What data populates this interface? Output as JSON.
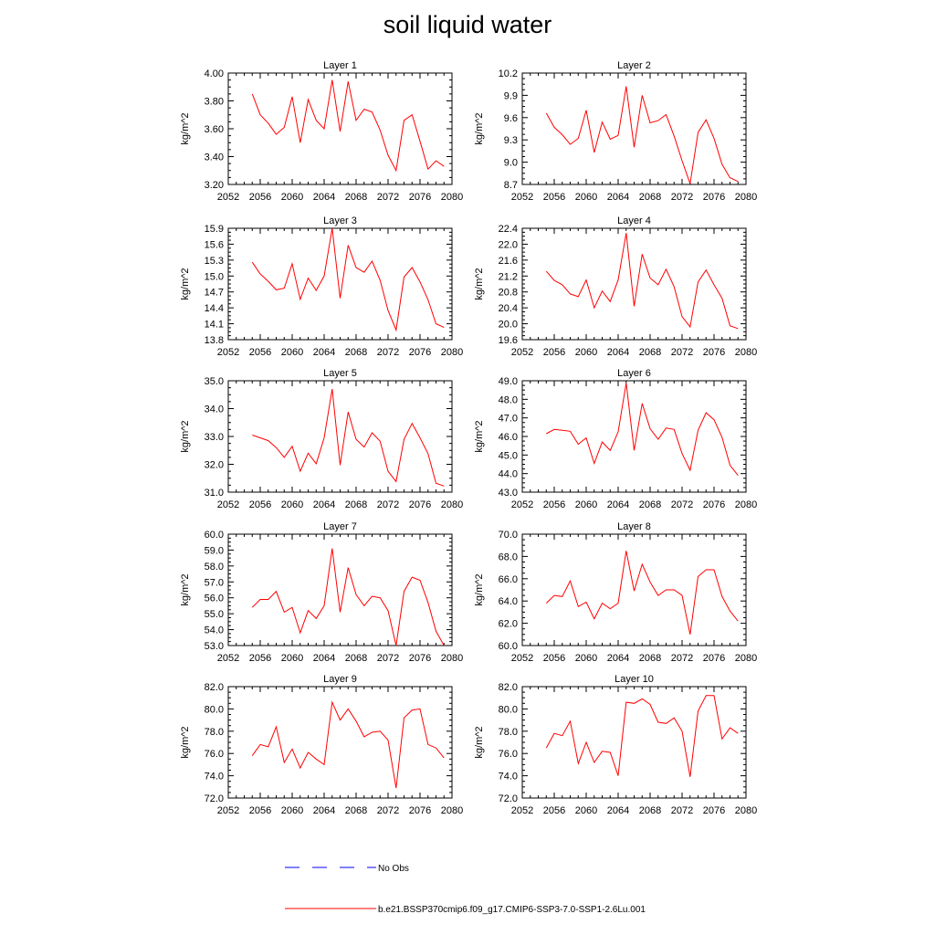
{
  "title": "soil liquid water",
  "x": [
    2055,
    2056,
    2057,
    2058,
    2059,
    2060,
    2061,
    2062,
    2063,
    2064,
    2065,
    2066,
    2067,
    2068,
    2069,
    2070,
    2071,
    2072,
    2073,
    2074,
    2075,
    2076,
    2077,
    2078,
    2079
  ],
  "xlim": [
    2052,
    2080
  ],
  "xticks": [
    2052,
    2056,
    2060,
    2064,
    2068,
    2072,
    2076,
    2080
  ],
  "legend": {
    "obs_label": "No Obs",
    "model_label": "b.e21.BSSP370cmip6.f09_g17.CMIP6-SSP3-7.0-SSP1-2.6Lu.001"
  },
  "colors": {
    "model": "#ff0000",
    "obs": "#0000ff"
  },
  "chart_data": [
    {
      "type": "line",
      "title": "Layer 1",
      "ylabel": "kg/m^2",
      "ylim": [
        3.2,
        4.0
      ],
      "yticks": [
        "3.20",
        "3.40",
        "3.60",
        "3.80",
        "4.00"
      ],
      "grid": false,
      "values": [
        3.85,
        3.7,
        3.64,
        3.56,
        3.61,
        3.83,
        3.5,
        3.81,
        3.66,
        3.6,
        3.95,
        3.58,
        3.94,
        3.66,
        3.74,
        3.72,
        3.59,
        3.41,
        3.3,
        3.66,
        3.7,
        3.51,
        3.31,
        3.37,
        3.33
      ]
    },
    {
      "type": "line",
      "title": "Layer 2",
      "ylabel": "kg/m^2",
      "ylim": [
        8.7,
        10.2
      ],
      "yticks": [
        "8.7",
        "9.0",
        "9.3",
        "9.6",
        "9.9",
        "10.2"
      ],
      "grid": false,
      "values": [
        9.66,
        9.47,
        9.37,
        9.24,
        9.32,
        9.7,
        9.13,
        9.54,
        9.31,
        9.36,
        10.02,
        9.2,
        9.9,
        9.53,
        9.56,
        9.64,
        9.35,
        9.02,
        8.71,
        9.4,
        9.57,
        9.32,
        8.97,
        8.79,
        8.74
      ]
    },
    {
      "type": "line",
      "title": "Layer 3",
      "ylabel": "kg/m^2",
      "ylim": [
        13.8,
        15.9
      ],
      "yticks": [
        "13.8",
        "14.1",
        "14.4",
        "14.7",
        "15.0",
        "15.3",
        "15.6",
        "15.9"
      ],
      "grid": false,
      "values": [
        15.26,
        15.04,
        14.9,
        14.74,
        14.77,
        15.23,
        14.56,
        14.96,
        14.73,
        15.0,
        15.9,
        14.58,
        15.58,
        15.16,
        15.07,
        15.28,
        14.92,
        14.35,
        13.98,
        14.98,
        15.16,
        14.89,
        14.55,
        14.1,
        14.03
      ]
    },
    {
      "type": "line",
      "title": "Layer 4",
      "ylabel": "kg/m^2",
      "ylim": [
        19.6,
        22.4
      ],
      "yticks": [
        "19.6",
        "20.0",
        "20.4",
        "20.8",
        "21.2",
        "21.6",
        "22.0",
        "22.4"
      ],
      "grid": false,
      "values": [
        21.32,
        21.09,
        20.98,
        20.75,
        20.68,
        21.1,
        20.4,
        20.82,
        20.56,
        21.1,
        22.28,
        20.44,
        21.75,
        21.15,
        20.98,
        21.37,
        20.93,
        20.18,
        19.92,
        21.05,
        21.35,
        20.98,
        20.64,
        19.95,
        19.88
      ]
    },
    {
      "type": "line",
      "title": "Layer 5",
      "ylabel": "kg/m^2",
      "ylim": [
        31.0,
        35.0
      ],
      "yticks": [
        "31.0",
        "32.0",
        "33.0",
        "34.0",
        "35.0"
      ],
      "grid": false,
      "values": [
        33.05,
        32.95,
        32.85,
        32.6,
        32.25,
        32.65,
        31.75,
        32.4,
        32.02,
        32.95,
        34.7,
        31.97,
        33.88,
        32.9,
        32.62,
        33.13,
        32.83,
        31.75,
        31.38,
        32.9,
        33.47,
        32.95,
        32.38,
        31.32,
        31.22
      ]
    },
    {
      "type": "line",
      "title": "Layer 6",
      "ylabel": "kg/m^2",
      "ylim": [
        43.0,
        49.0
      ],
      "yticks": [
        "43.0",
        "44.0",
        "45.0",
        "46.0",
        "47.0",
        "48.0",
        "49.0"
      ],
      "grid": false,
      "values": [
        46.15,
        46.38,
        46.33,
        46.28,
        45.58,
        45.92,
        44.55,
        45.7,
        45.25,
        46.25,
        48.88,
        45.25,
        47.78,
        46.42,
        45.85,
        46.45,
        46.38,
        45.08,
        44.18,
        46.33,
        47.28,
        46.9,
        45.95,
        44.45,
        43.9
      ]
    },
    {
      "type": "line",
      "title": "Layer 7",
      "ylabel": "kg/m^2",
      "ylim": [
        53.0,
        60.0
      ],
      "yticks": [
        "53.0",
        "54.0",
        "55.0",
        "56.0",
        "57.0",
        "58.0",
        "59.0",
        "60.0"
      ],
      "grid": false,
      "values": [
        55.4,
        55.9,
        55.9,
        56.4,
        55.1,
        55.4,
        53.8,
        55.2,
        54.7,
        55.5,
        59.1,
        55.1,
        57.9,
        56.2,
        55.5,
        56.1,
        56.0,
        55.2,
        53.0,
        56.4,
        57.3,
        57.1,
        55.7,
        53.9,
        53.0
      ]
    },
    {
      "type": "line",
      "title": "Layer 8",
      "ylabel": "kg/m^2",
      "ylim": [
        60.0,
        70.0
      ],
      "yticks": [
        "60.0",
        "62.0",
        "64.0",
        "66.0",
        "68.0",
        "70.0"
      ],
      "grid": false,
      "values": [
        63.8,
        64.5,
        64.4,
        65.8,
        63.5,
        63.9,
        62.4,
        63.8,
        63.3,
        63.8,
        68.5,
        64.9,
        67.3,
        65.7,
        64.5,
        65.0,
        65.0,
        64.5,
        61.0,
        66.2,
        66.8,
        66.8,
        64.4,
        63.1,
        62.2
      ]
    },
    {
      "type": "line",
      "title": "Layer 9",
      "ylabel": "kg/m^2",
      "ylim": [
        72.0,
        82.0
      ],
      "yticks": [
        "72.0",
        "74.0",
        "76.0",
        "78.0",
        "80.0",
        "82.0"
      ],
      "grid": false,
      "values": [
        75.8,
        76.8,
        76.6,
        78.4,
        75.2,
        76.4,
        74.7,
        76.1,
        75.5,
        75.0,
        80.6,
        79.0,
        80.0,
        78.9,
        77.5,
        77.9,
        78.0,
        77.2,
        72.9,
        79.2,
        79.9,
        80.0,
        76.8,
        76.5,
        75.6
      ]
    },
    {
      "type": "line",
      "title": "Layer 10",
      "ylabel": "kg/m^2",
      "ylim": [
        72.0,
        82.0
      ],
      "yticks": [
        "72.0",
        "74.0",
        "76.0",
        "78.0",
        "80.0",
        "82.0"
      ],
      "grid": false,
      "values": [
        76.5,
        77.8,
        77.6,
        78.9,
        75.1,
        77.0,
        75.2,
        76.2,
        76.1,
        74.0,
        80.6,
        80.5,
        80.9,
        80.4,
        78.8,
        78.7,
        79.2,
        78.0,
        73.9,
        79.8,
        81.2,
        81.2,
        77.3,
        78.3,
        77.8
      ]
    }
  ]
}
